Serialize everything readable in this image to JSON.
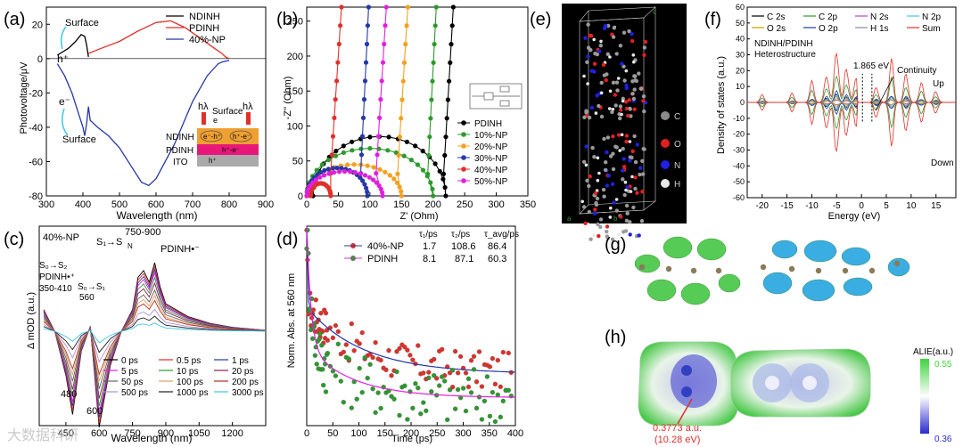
{
  "panels": {
    "a": {
      "label": "(a)",
      "xlabel": "Wavelength (nm)",
      "ylabel": "Photovoltage/μV",
      "xticks": [
        "300",
        "400",
        "500",
        "600",
        "700",
        "800",
        "900"
      ],
      "yticks": [
        "20",
        "0",
        "-20",
        "-40",
        "-60",
        "-80"
      ],
      "legend": [
        "NDINH",
        "PDINH",
        "40%-NP"
      ],
      "ann": {
        "surface_top": "Surface",
        "h_plus": "h⁺",
        "e_minus": "e⁻",
        "surface_bottom": "Surface",
        "inset_hv1": "hλ",
        "inset_surface": "Surface",
        "inset_hv2": "hλ",
        "inset_e": "e",
        "layer_ndinh": "NDINH",
        "layer_pdinh": "PDINH",
        "layer_ito": "ITO",
        "ndinh_pair1": "e⁻-h⁺",
        "ndinh_pair2": "h⁺-e⁻",
        "pdinh_pair": "h⁺-e⁻",
        "ito_h": "h⁺"
      }
    },
    "b": {
      "label": "(b)",
      "xlabel": "Z' (Ohm)",
      "ylabel": "-Z'' (Ohm)",
      "xticks": [
        "0",
        "50",
        "100",
        "150",
        "200",
        "250",
        "300",
        "350"
      ],
      "yticks": [
        "0",
        "50",
        "100",
        "150",
        "200",
        "250"
      ],
      "legend": [
        "PDINH",
        "10%-NP",
        "20%-NP",
        "30%-NP",
        "40%-NP",
        "50%-NP"
      ]
    },
    "c": {
      "label": "(c)",
      "xlabel": "Wavelength (nm)",
      "ylabel": "Δ mOD (a.u.)",
      "xticks": [
        "450",
        "600",
        "750",
        "900",
        "1050",
        "1200"
      ],
      "title": "40%-NP",
      "ann": {
        "s1sn": "S₁→S",
        "sn_sub": "N",
        "range": "750-900",
        "pdinh_anion": "PDINH•⁻",
        "s0s2": "S₀→S₂",
        "pdinh_cat": "PDINH•⁺",
        "r350": "350-410",
        "s0s1": "S₀→S₁",
        "n560": "560",
        "n480": "480",
        "n600": "600"
      },
      "legend": [
        "0 ps",
        "0.5 ps",
        "1 ps",
        "5 ps",
        "10 ps",
        "20 ps",
        "50 ps",
        "100 ps",
        "200 ps",
        "500 ps",
        "1000 ps",
        "3000 ps"
      ]
    },
    "d": {
      "label": "(d)",
      "xlabel": "Time (ps)",
      "ylabel": "Norm. Abs. at 560 nm",
      "xticks": [
        "0",
        "50",
        "100",
        "150",
        "200",
        "250",
        "300",
        "350",
        "400"
      ],
      "table_head": [
        "τ₁/ps",
        "τ₂/ps",
        "τ_avg/ps"
      ],
      "rows": [
        {
          "name": "40%-NP",
          "t1": "1.7",
          "t2": "108.6",
          "tavg": "86.4"
        },
        {
          "name": "PDINH",
          "t1": "8.1",
          "t2": "87.1",
          "tavg": "60.3"
        }
      ]
    },
    "e": {
      "label": "(e)",
      "atoms": [
        "C",
        "O",
        "N",
        "H"
      ],
      "axis_c": "c",
      "axis_b": "b",
      "axis_a": "a"
    },
    "f": {
      "label": "(f)",
      "xlabel": "Energy (eV)",
      "ylabel": "Density of states (a.u.)",
      "xticks": [
        "-20",
        "-15",
        "-10",
        "-5",
        "0",
        "5",
        "10",
        "15"
      ],
      "yticks": [
        "60",
        "50",
        "40",
        "30",
        "20",
        "10",
        "0",
        "-10",
        "-20",
        "-30",
        "-40",
        "-50",
        "-60"
      ],
      "legend": [
        "C 2s",
        "C 2p",
        "N 2s",
        "N 2p",
        "O 2s",
        "O 2p",
        "H 1s",
        "Sum"
      ],
      "ann": {
        "hetero1": "NDINH/PDINH",
        "hetero2": "Heterostructure",
        "gap": "1.865 eV",
        "continuity": "Continuity",
        "up": "Up",
        "down": "Down"
      }
    },
    "g": {
      "label": "(g)"
    },
    "h": {
      "label": "(h)",
      "colorbar_title": "ALIE(a.u.)",
      "cb_max": "0.55",
      "cb_min": "0.36",
      "value1": "0.3773 a.u.",
      "value2": "(10.28 eV)"
    }
  },
  "watermark": "大数据科研",
  "colors": {
    "black": "#000000",
    "red": "#e0302a",
    "blue": "#2637a8",
    "green": "#2c9a2c",
    "orange": "#f4a020",
    "magenta": "#e020e0",
    "cyan": "#3fc6e0",
    "grey": "#8a8a8a",
    "brown": "#b03020"
  },
  "chart_data": [
    {
      "type": "line",
      "panel": "a",
      "xlim": [
        300,
        900
      ],
      "ylim": [
        -80,
        30
      ],
      "series": [
        {
          "name": "NDINH",
          "x": [
            330,
            360,
            380,
            395,
            405,
            410,
            415
          ],
          "y": [
            2,
            6,
            10,
            14,
            13,
            8,
            1
          ]
        },
        {
          "name": "PDINH",
          "x": [
            415,
            450,
            500,
            550,
            580,
            600,
            640,
            680,
            720,
            760,
            780,
            790,
            800
          ],
          "y": [
            3,
            6,
            10,
            16,
            19,
            21,
            22,
            18,
            12,
            6,
            3,
            1,
            0
          ]
        },
        {
          "name": "40%-NP",
          "x": [
            330,
            350,
            370,
            385,
            400,
            405,
            410,
            415,
            420,
            440,
            470,
            500,
            530,
            560,
            580,
            600,
            650,
            700,
            740,
            770,
            780,
            800
          ],
          "y": [
            -3,
            -10,
            -20,
            -30,
            -40,
            -45,
            -38,
            -28,
            -36,
            -40,
            -45,
            -52,
            -62,
            -72,
            -74,
            -70,
            -50,
            -25,
            -10,
            -3,
            -2,
            -1
          ]
        }
      ]
    },
    {
      "type": "scatter",
      "panel": "b",
      "xlim": [
        0,
        350
      ],
      "ylim": [
        0,
        270
      ],
      "series": [
        {
          "name": "PDINH",
          "center": [
            115,
            0
          ],
          "radius": [
            105,
            85
          ],
          "tail_from": [
            215,
            5
          ],
          "tail_to": [
            232,
            270
          ]
        },
        {
          "name": "10%-NP",
          "center": [
            100,
            0
          ],
          "radius": [
            100,
            68
          ],
          "tail_from": [
            190,
            5
          ],
          "tail_to": [
            205,
            270
          ]
        },
        {
          "name": "20%-NP",
          "center": [
            75,
            0
          ],
          "radius": [
            75,
            45
          ],
          "tail_from": [
            142,
            5
          ],
          "tail_to": [
            160,
            270
          ]
        },
        {
          "name": "30%-NP",
          "center": [
            48,
            0
          ],
          "radius": [
            48,
            40
          ],
          "tail_from": [
            84,
            6
          ],
          "tail_to": [
            98,
            270
          ]
        },
        {
          "name": "40%-NP",
          "center": [
            22,
            0
          ],
          "radius": [
            16,
            18
          ],
          "tail_from": [
            36,
            6
          ],
          "tail_to": [
            55,
            270
          ]
        },
        {
          "name": "50%-NP",
          "center": [
            60,
            0
          ],
          "radius": [
            60,
            35
          ],
          "tail_from": [
            108,
            6
          ],
          "tail_to": [
            126,
            270
          ]
        }
      ]
    },
    {
      "type": "line",
      "panel": "c",
      "xlim": [
        330,
        1350
      ],
      "ylim": [
        -1,
        1
      ],
      "series_names": [
        "0 ps",
        "0.5 ps",
        "1 ps",
        "5 ps",
        "10 ps",
        "20 ps",
        "50 ps",
        "100 ps",
        "200 ps",
        "500 ps",
        "1000 ps",
        "3000 ps"
      ],
      "x": [
        350,
        400,
        450,
        480,
        520,
        560,
        600,
        650,
        700,
        750,
        775,
        800,
        825,
        850,
        875,
        900,
        1000,
        1100,
        1200,
        1300,
        1350
      ],
      "scales": [
        1.0,
        0.95,
        0.9,
        0.85,
        0.78,
        0.7,
        0.6,
        0.52,
        0.45,
        0.32,
        0.22,
        0.12
      ],
      "profile": [
        0.22,
        0.0,
        -0.45,
        -0.85,
        -0.2,
        0.05,
        -0.98,
        -0.35,
        0.0,
        0.22,
        0.55,
        0.62,
        0.5,
        0.7,
        0.45,
        0.28,
        0.15,
        0.08,
        0.04,
        0.02,
        0.01
      ]
    },
    {
      "type": "scatter",
      "panel": "d",
      "xlim": [
        0,
        400
      ],
      "ylim": [
        0,
        1
      ],
      "series": [
        {
          "name": "40%-NP",
          "fit": {
            "A1": 0.55,
            "t1": 1.7,
            "A2": 0.45,
            "t2": 108.6,
            "offset": 0.26
          }
        },
        {
          "name": "PDINH",
          "fit": {
            "A1": 0.7,
            "t1": 8.1,
            "A2": 0.3,
            "t2": 87.1,
            "offset": 0.14
          }
        }
      ]
    },
    {
      "type": "line",
      "panel": "f",
      "xlim": [
        -23,
        19
      ],
      "ylim": [
        -60,
        60
      ],
      "series": [
        "C 2s",
        "C 2p",
        "N 2s",
        "N 2p",
        "O 2s",
        "O 2p",
        "H 1s",
        "Sum"
      ],
      "sum_peaks": [
        {
          "e": -20,
          "h": 5
        },
        {
          "e": -14,
          "h": 6
        },
        {
          "e": -10,
          "h": 14
        },
        {
          "e": -7,
          "h": 22
        },
        {
          "e": -5,
          "h": 42
        },
        {
          "e": -3,
          "h": 28
        },
        {
          "e": -1,
          "h": 20
        },
        {
          "e": 3,
          "h": 12
        },
        {
          "e": 6,
          "h": 30
        },
        {
          "e": 9,
          "h": 22
        },
        {
          "e": 12,
          "h": 14
        },
        {
          "e": 15,
          "h": 8
        }
      ]
    }
  ]
}
